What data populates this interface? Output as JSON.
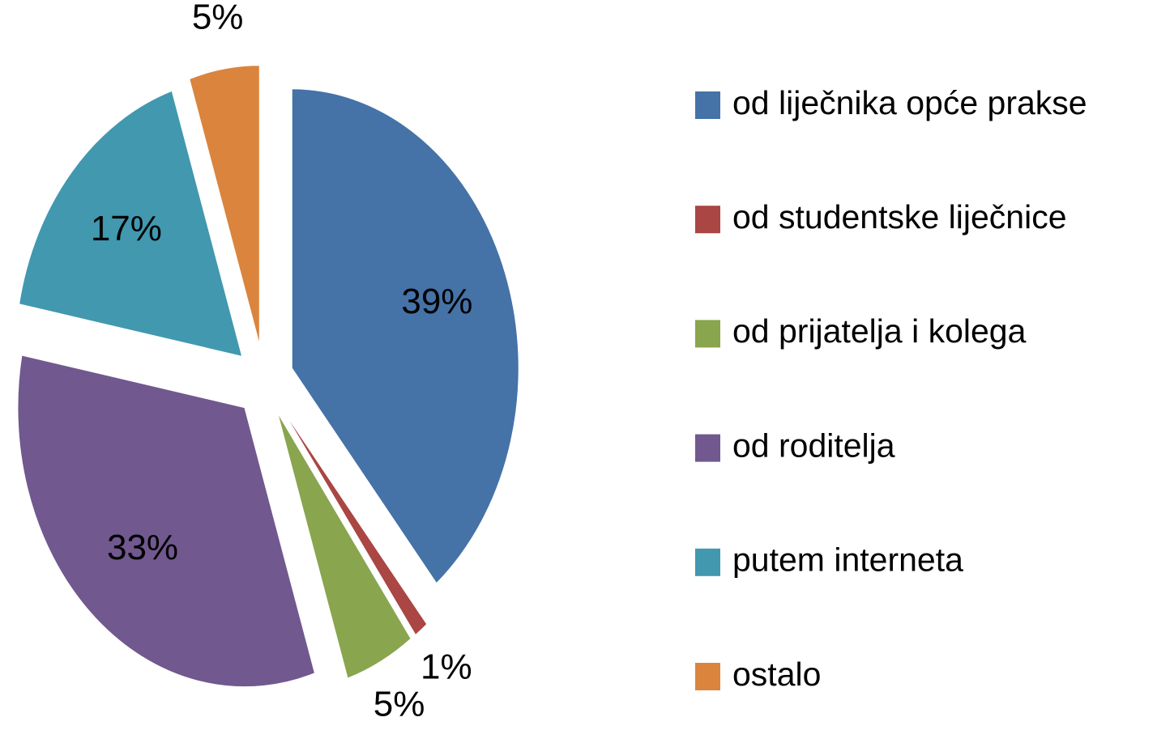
{
  "chart_data": {
    "type": "pie",
    "categories": [
      "od liječnika opće prakse",
      "od studentske liječnice",
      "od prijatelja i kolega",
      "od roditelja",
      "putem interneta",
      "ostalo"
    ],
    "values": [
      39,
      1,
      5,
      33,
      17,
      5
    ],
    "value_labels": [
      "39%",
      "1%",
      "5%",
      "33%",
      "17%",
      "5%"
    ],
    "colors": [
      "#4572a7",
      "#aa4643",
      "#89a54e",
      "#71588f",
      "#4198af",
      "#db843d"
    ],
    "legend": "right"
  }
}
